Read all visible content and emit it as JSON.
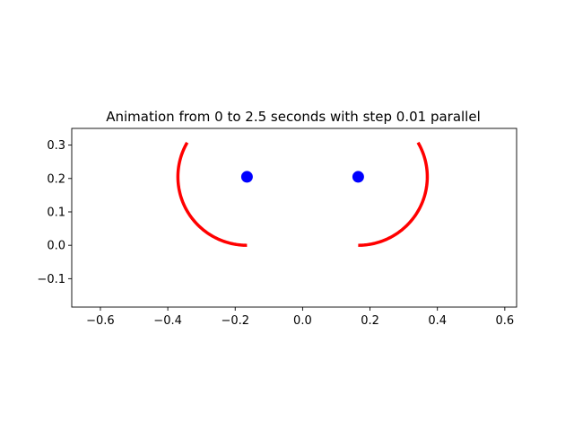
{
  "chart_data": {
    "type": "line",
    "title": "Animation from 0 to 2.5 seconds with step 0.01 parallel",
    "xlabel": "",
    "ylabel": "",
    "xlim": [
      -0.685,
      0.635
    ],
    "ylim": [
      -0.185,
      0.35
    ],
    "x_ticks": [
      -0.6,
      -0.4,
      -0.2,
      0.0,
      0.2,
      0.4,
      0.6
    ],
    "x_tick_labels": [
      "−0.6",
      "−0.4",
      "−0.2",
      "0.0",
      "0.2",
      "0.4",
      "0.6"
    ],
    "y_ticks": [
      -0.1,
      0.0,
      0.1,
      0.2,
      0.3
    ],
    "y_tick_labels": [
      "−0.1",
      "0.0",
      "0.1",
      "0.2",
      "0.3"
    ],
    "grid": false,
    "equal_aspect": true,
    "arcs": [
      {
        "color": "#ff0000",
        "center": [
          -0.165,
          0.205
        ],
        "radius": 0.205,
        "start_deg": 270,
        "end_deg": 150,
        "direction": "clockwise"
      },
      {
        "color": "#ff0000",
        "center": [
          0.165,
          0.205
        ],
        "radius": 0.205,
        "start_deg": 270,
        "end_deg": 30,
        "direction": "counterclockwise"
      }
    ],
    "points": [
      {
        "x": -0.165,
        "y": 0.205,
        "color": "#0000ff"
      },
      {
        "x": 0.165,
        "y": 0.205,
        "color": "#0000ff"
      }
    ]
  }
}
